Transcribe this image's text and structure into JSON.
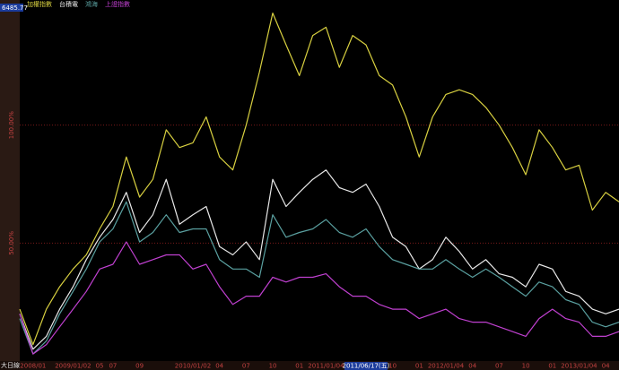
{
  "chart_data": {
    "type": "line",
    "last_value": "6485.77",
    "period": "大日線",
    "categories": [
      null,
      "2008/01",
      null,
      null,
      "2009/01/02",
      null,
      "05",
      "07",
      null,
      "09",
      null,
      null,
      null,
      "2010/01/02",
      null,
      "04",
      null,
      "07",
      null,
      "10",
      null,
      "01",
      null,
      "2011/01/04",
      null,
      null,
      "2011/06/17(五)",
      null,
      "10",
      null,
      "01",
      null,
      "2012/01/04",
      null,
      "04",
      null,
      "07",
      null,
      "10",
      null,
      "01",
      null,
      "2013/01/04",
      null,
      "04",
      null
    ],
    "ylim": [
      0,
      150
    ],
    "yticks": [
      {
        "value": 50,
        "label": "50.00%"
      },
      {
        "value": 100,
        "label": "100.00%"
      }
    ],
    "grid": true,
    "series": [
      {
        "name": "加權指數",
        "color": "#d8d040",
        "values": [
          22,
          7,
          22,
          31.5,
          39,
          45,
          56,
          65.5,
          86.5,
          69.5,
          77,
          98,
          90.5,
          92.5,
          103.5,
          86.5,
          81,
          100,
          122.5,
          147.5,
          134,
          121,
          138,
          141.5,
          124.5,
          138,
          134,
          121,
          117,
          103.5,
          86.5,
          103.5,
          113,
          115,
          113,
          107.5,
          100,
          90.5,
          79,
          98,
          90.5,
          81,
          83,
          64,
          71.5,
          67.5
        ]
      },
      {
        "name": "台積電",
        "color": "#e8e8e8",
        "values": [
          20,
          5,
          10.5,
          22,
          31.5,
          43,
          52.5,
          60,
          71.5,
          54.5,
          62,
          77,
          58,
          62,
          65.5,
          48.5,
          45,
          50.5,
          43,
          77,
          65.5,
          71.5,
          77,
          81,
          73.5,
          71.5,
          75,
          65.5,
          52.5,
          48.5,
          39,
          43,
          52.5,
          46.5,
          39,
          43,
          37,
          35.5,
          31.5,
          41,
          39,
          29.5,
          27.5,
          22,
          20,
          22
        ]
      },
      {
        "name": "鴻海",
        "color": "#5aa0a0",
        "values": [
          18,
          3,
          8.5,
          20,
          29.5,
          39,
          50.5,
          56,
          67.5,
          50.5,
          54.5,
          62,
          54.5,
          56,
          56,
          43,
          39,
          39,
          35.5,
          62,
          52.5,
          54.5,
          56,
          60,
          54.5,
          52.5,
          56,
          48.5,
          43,
          41,
          39,
          39,
          43,
          39,
          35.5,
          39,
          35.5,
          31.5,
          27.5,
          33.5,
          31.5,
          26,
          24,
          16.5,
          14.5,
          16.5
        ]
      },
      {
        "name": "上證指數",
        "color": "#c040d0",
        "values": [
          20,
          3,
          7,
          14.5,
          22,
          29.5,
          39,
          41,
          50.5,
          41,
          43,
          45,
          45,
          39,
          41,
          31.5,
          24,
          27.5,
          27.5,
          35.5,
          33.5,
          35.5,
          35.5,
          37,
          31.5,
          27.5,
          27.5,
          24,
          22,
          22,
          18,
          20,
          22,
          18,
          16.5,
          16.5,
          14.5,
          12.5,
          10.5,
          18,
          22,
          18,
          16.5,
          10.5,
          10.5,
          12.5
        ]
      }
    ]
  }
}
